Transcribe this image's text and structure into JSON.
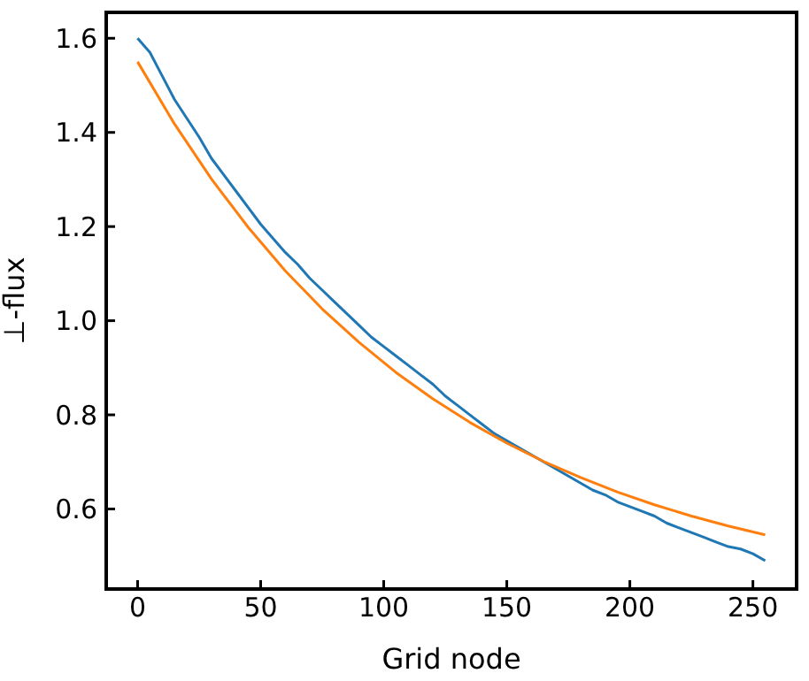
{
  "chart_data": {
    "type": "line",
    "xlabel": "Grid node",
    "ylabel": "⊥-flux",
    "xlim": [
      -12.75,
      267.75
    ],
    "xticks": [
      0,
      50,
      100,
      150,
      200,
      250
    ],
    "ylim": [
      0.43,
      1.655
    ],
    "yticks": [
      0.6,
      0.8,
      {
        "value": 1,
        "label": "1.0"
      },
      1.2,
      1.4,
      1.6
    ],
    "grid": false,
    "marker": "none",
    "line_style": "solid",
    "series": [
      {
        "color": "#1f77b4",
        "x": [
          0,
          5,
          10,
          15,
          20,
          25,
          30,
          35,
          40,
          45,
          50,
          55,
          60,
          65,
          70,
          75,
          80,
          85,
          90,
          95,
          100,
          105,
          110,
          115,
          120,
          125,
          130,
          135,
          140,
          145,
          150,
          155,
          160,
          165,
          170,
          175,
          180,
          185,
          190,
          195,
          200,
          205,
          210,
          215,
          220,
          225,
          230,
          235,
          240,
          245,
          250,
          255
        ],
        "values": [
          1.6,
          1.57,
          1.52,
          1.47,
          1.43,
          1.39,
          1.345,
          1.31,
          1.275,
          1.24,
          1.205,
          1.175,
          1.145,
          1.12,
          1.09,
          1.065,
          1.04,
          1.015,
          0.99,
          0.965,
          0.945,
          0.925,
          0.905,
          0.885,
          0.865,
          0.84,
          0.82,
          0.8,
          0.78,
          0.76,
          0.745,
          0.73,
          0.715,
          0.7,
          0.685,
          0.67,
          0.655,
          0.64,
          0.63,
          0.615,
          0.605,
          0.595,
          0.585,
          0.57,
          0.56,
          0.55,
          0.54,
          0.53,
          0.52,
          0.515,
          0.505,
          0.49
        ]
      },
      {
        "color": "#ff7f0e",
        "x": [
          0,
          15,
          30,
          45,
          60,
          75,
          90,
          105,
          120,
          135,
          150,
          165,
          180,
          195,
          210,
          225,
          240,
          255
        ],
        "values": [
          1.55,
          1.418,
          1.301,
          1.198,
          1.106,
          1.025,
          0.954,
          0.89,
          0.834,
          0.784,
          0.74,
          0.701,
          0.667,
          0.636,
          0.609,
          0.585,
          0.564,
          0.545
        ]
      }
    ]
  }
}
